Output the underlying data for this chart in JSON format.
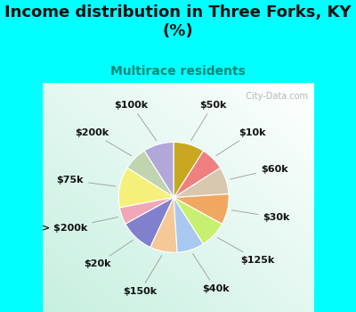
{
  "title": "Income distribution in Three Forks, KY\n(%)",
  "subtitle": "Multirace residents",
  "labels": [
    "$100k",
    "$200k",
    "$75k",
    "> $200k",
    "$20k",
    "$150k",
    "$40k",
    "$125k",
    "$30k",
    "$60k",
    "$10k",
    "$50k"
  ],
  "values": [
    9,
    7,
    12,
    5,
    10,
    8,
    8,
    8,
    9,
    8,
    7,
    9
  ],
  "colors": [
    "#b0a8d8",
    "#c0d4b0",
    "#f5f07a",
    "#f0a8b8",
    "#8080cc",
    "#f5c898",
    "#a8c8f0",
    "#c8f070",
    "#f0a860",
    "#d8c8b0",
    "#f08080",
    "#c8a820"
  ],
  "background_color": "#00ffff",
  "watermark": "  City-Data.com",
  "title_fontsize": 13,
  "subtitle_fontsize": 10,
  "label_fontsize": 8
}
